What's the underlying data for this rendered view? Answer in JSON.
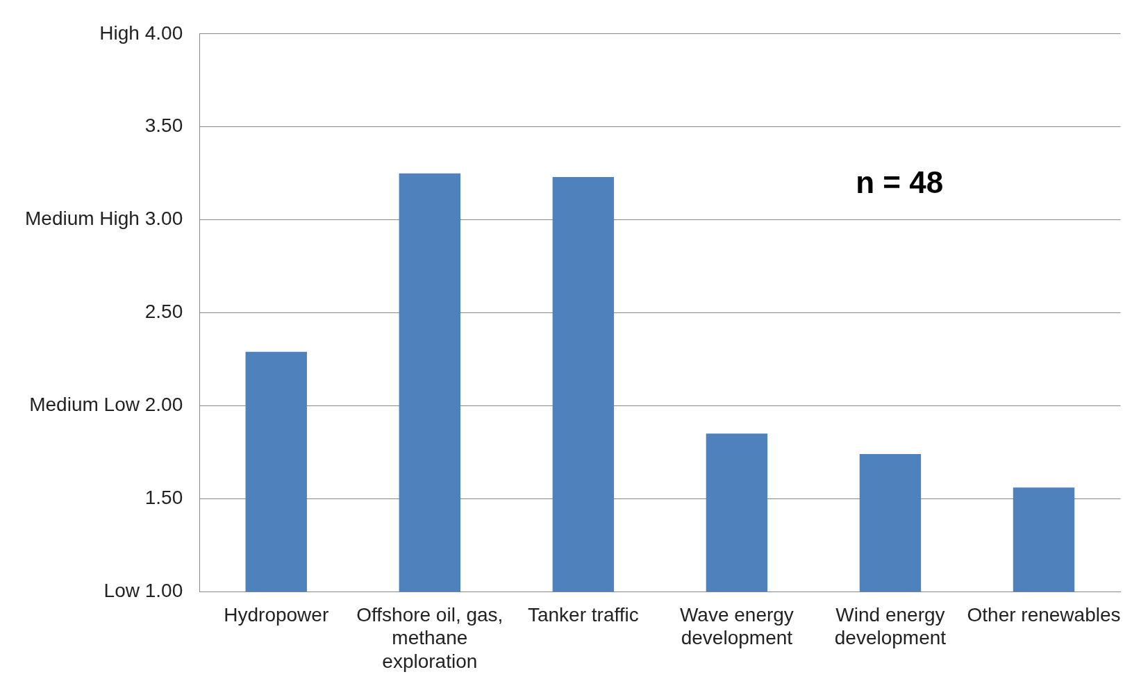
{
  "chart_data": {
    "type": "bar",
    "categories": [
      "Hydropower",
      "Offshore oil, gas, methane exploration",
      "Tanker traffic",
      "Wave energy development",
      "Wind energy development",
      "Other renewables"
    ],
    "values": [
      2.29,
      3.25,
      3.23,
      1.85,
      1.74,
      1.56
    ],
    "color": "#4f81bd",
    "ylim": [
      1,
      4
    ],
    "yticks": [
      {
        "value": 1,
        "label": "Low 1.00"
      },
      {
        "value": 1.5,
        "label": "1.50"
      },
      {
        "value": 2,
        "label": "Medium Low 2.00"
      },
      {
        "value": 2.5,
        "label": "2.50"
      },
      {
        "value": 3,
        "label": "Medium High 3.00"
      },
      {
        "value": 3.5,
        "label": "3.50"
      },
      {
        "value": 4,
        "label": "High 4.00"
      }
    ],
    "grid": "y",
    "legend": false,
    "annotations": [
      "n = 48"
    ]
  }
}
